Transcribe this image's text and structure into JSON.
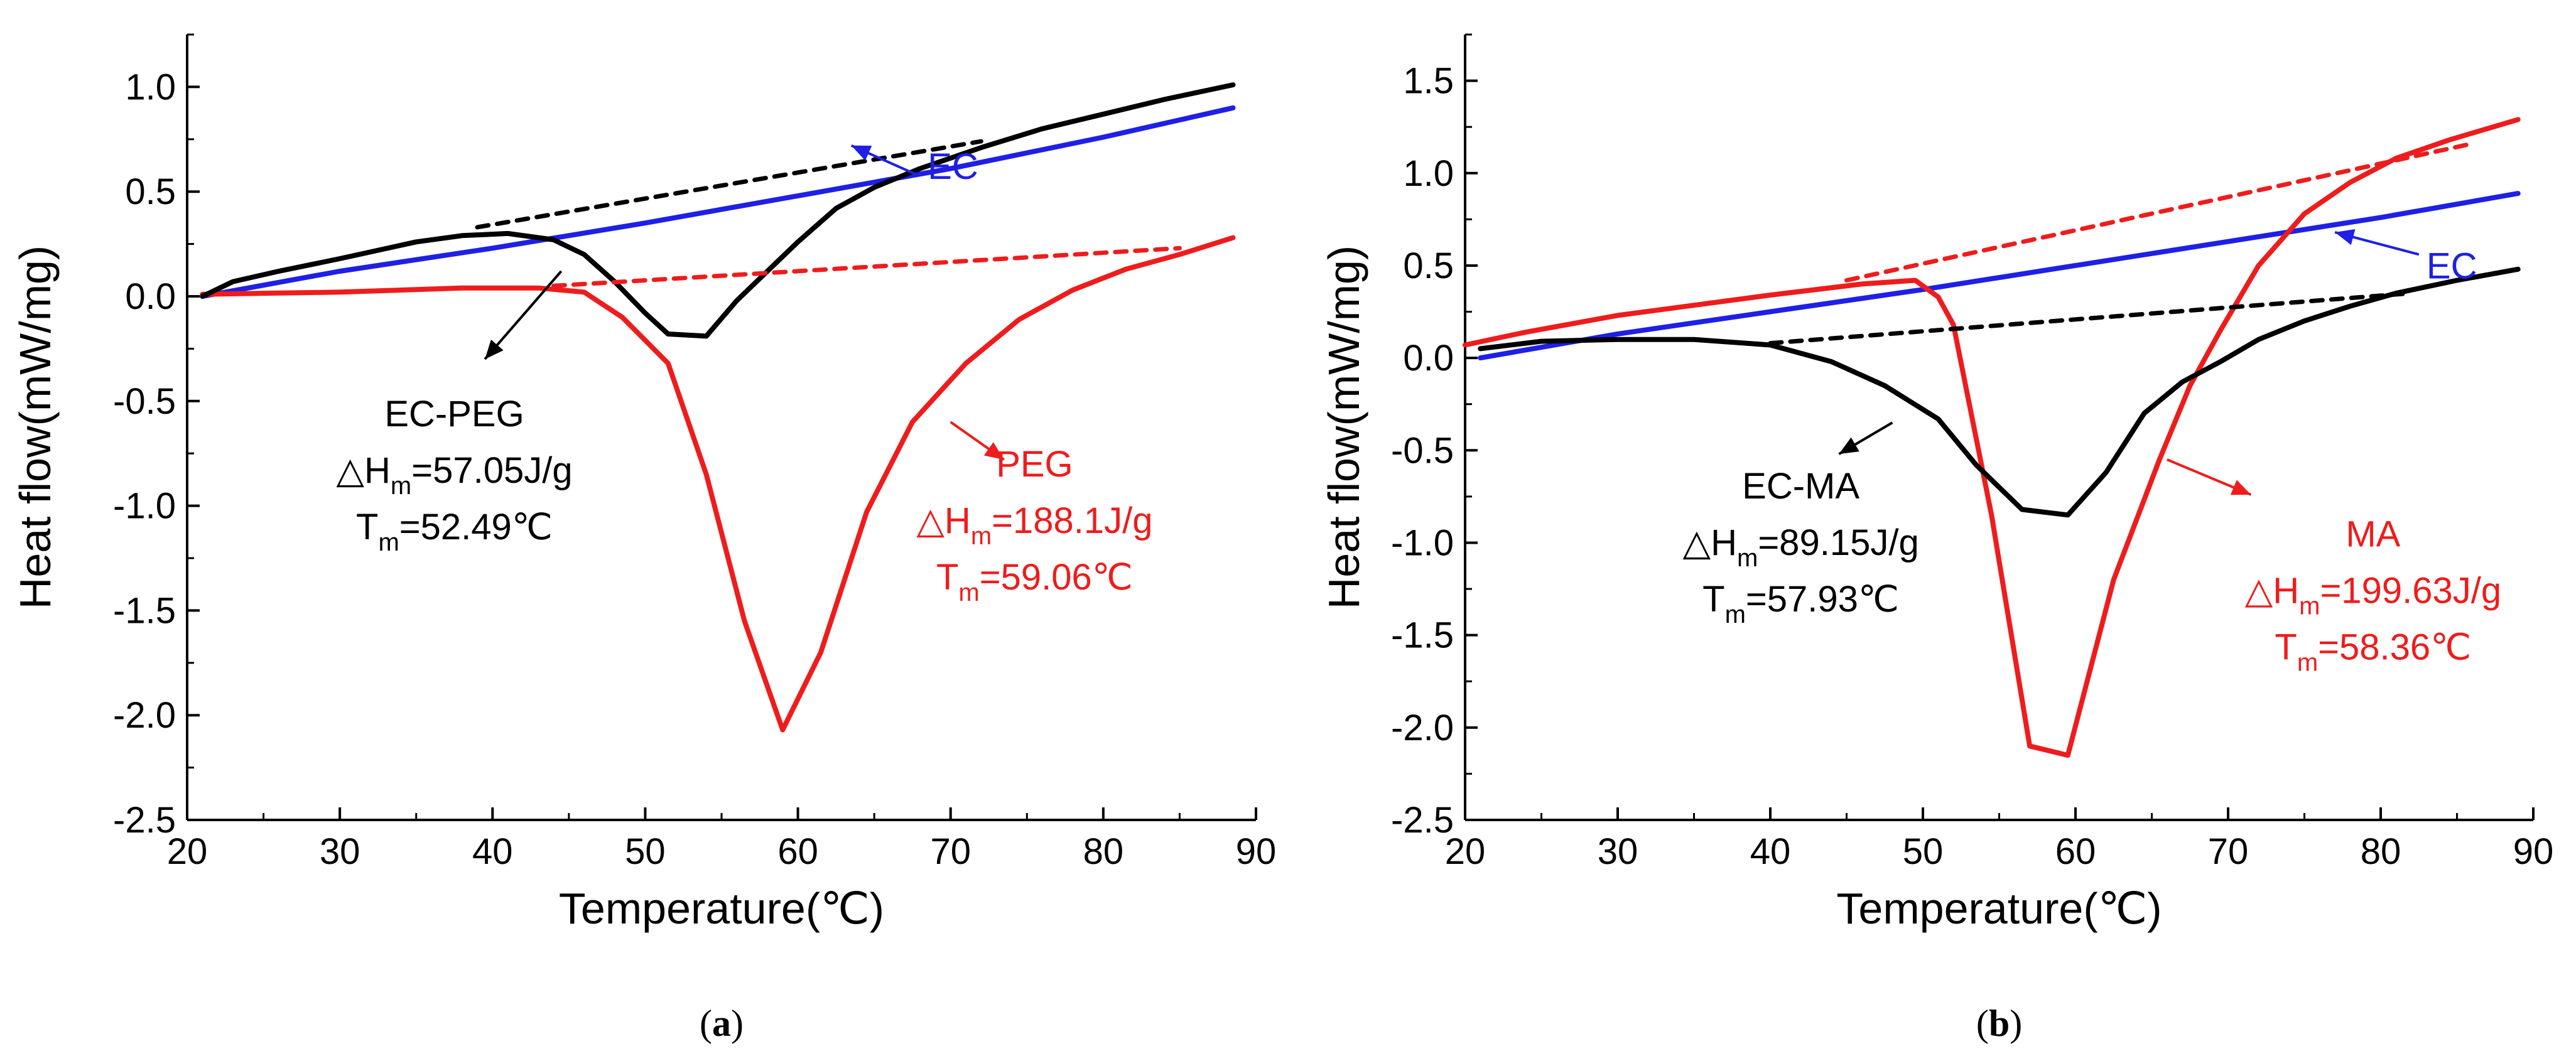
{
  "chart_data": [
    {
      "type": "line",
      "panel": "a",
      "panel_label": {
        "open": "(",
        "letter": "a",
        "close": ")"
      },
      "xlabel": "Temperature(℃)",
      "ylabel": "Heat flow(mW/mg)",
      "xlim": [
        20,
        90
      ],
      "ylim": [
        -2.5,
        1.25
      ],
      "xticks": [
        "20",
        "30",
        "40",
        "50",
        "60",
        "70",
        "80",
        "90"
      ],
      "xtick_values": [
        20,
        30,
        40,
        50,
        60,
        70,
        80,
        90
      ],
      "yticks": [
        "-2.5",
        "-2.0",
        "-1.5",
        "-1.0",
        "-0.5",
        "0.0",
        "0.5",
        "1.0"
      ],
      "ytick_values": [
        -2.5,
        -2.0,
        -1.5,
        -1.0,
        -0.5,
        0.0,
        0.5,
        1.0
      ],
      "colors": {
        "EC": "#1f1fe6",
        "PEG": "#ee1c1c",
        "EC-PEG": "#000000"
      },
      "series": [
        {
          "name": "EC",
          "color": "#1f1fe6",
          "style": "solid",
          "x": [
            21,
            30,
            40,
            50,
            60,
            70,
            80,
            88.5
          ],
          "y": [
            0.0,
            0.12,
            0.23,
            0.35,
            0.48,
            0.61,
            0.76,
            0.9
          ]
        },
        {
          "name": "PEG",
          "color": "#ee1c1c",
          "style": "solid",
          "x": [
            21,
            30,
            38,
            43,
            46,
            48.5,
            51.5,
            54,
            56.5,
            59,
            61.5,
            64.5,
            67.5,
            71,
            74.5,
            78,
            81.5,
            85,
            88.5
          ],
          "y": [
            0.01,
            0.02,
            0.04,
            0.04,
            0.02,
            -0.1,
            -0.32,
            -0.85,
            -1.55,
            -2.07,
            -1.7,
            -1.03,
            -0.6,
            -0.32,
            -0.11,
            0.03,
            0.13,
            0.2,
            0.28
          ]
        },
        {
          "name": "EC-PEG",
          "color": "#000000",
          "style": "solid",
          "x": [
            21,
            23,
            26,
            30,
            35,
            38,
            41,
            44,
            46,
            48,
            50,
            51.5,
            54,
            56,
            58,
            60,
            62.5,
            65,
            68,
            72,
            76,
            80,
            84,
            88.5
          ],
          "y": [
            0.0,
            0.07,
            0.12,
            0.18,
            0.26,
            0.29,
            0.3,
            0.27,
            0.2,
            0.07,
            -0.08,
            -0.18,
            -0.19,
            -0.02,
            0.12,
            0.26,
            0.42,
            0.52,
            0.61,
            0.71,
            0.8,
            0.87,
            0.94,
            1.01
          ]
        },
        {
          "name": "EC-PEG baseline",
          "color": "#000000",
          "style": "dashed",
          "x": [
            39,
            72
          ],
          "y": [
            0.33,
            0.74
          ]
        },
        {
          "name": "PEG baseline",
          "color": "#ee1c1c",
          "style": "dashed",
          "x": [
            44,
            85
          ],
          "y": [
            0.05,
            0.23
          ]
        }
      ],
      "annotations": [
        {
          "label": "EC",
          "color": "#1f1fe6",
          "lines": [
            {
              "main": "EC"
            }
          ],
          "text_x": 68.5,
          "text_y": 0.56,
          "anchor": "start",
          "arrow": {
            "from": [
              67.8,
              0.58
            ],
            "to": [
              63.5,
              0.72
            ]
          }
        },
        {
          "label": "EC-PEG",
          "color": "#000000",
          "lines": [
            {
              "main": "EC-PEG"
            },
            {
              "pre": "△H",
              "sub": "m",
              "post": "=57.05J/g"
            },
            {
              "pre": "T",
              "sub": "m",
              "post": "=52.49℃"
            }
          ],
          "text_x": 37.5,
          "text_y": -0.62,
          "anchor": "middle",
          "arrow": {
            "from": [
              44.5,
              0.12
            ],
            "to": [
              39.5,
              -0.3
            ]
          }
        },
        {
          "label": "PEG",
          "color": "#ee1c1c",
          "lines": [
            {
              "main": "PEG"
            },
            {
              "pre": "△H",
              "sub": "m",
              "post": "=188.1J/g"
            },
            {
              "pre": "T",
              "sub": "m",
              "post": "=59.06℃"
            }
          ],
          "text_x": 75.5,
          "text_y": -0.86,
          "anchor": "middle",
          "arrow": {
            "from": [
              70,
              -0.6
            ],
            "to": [
              73.5,
              -0.78
            ]
          }
        }
      ]
    },
    {
      "type": "line",
      "panel": "b",
      "panel_label": {
        "open": "(",
        "letter": "b",
        "close": ")"
      },
      "xlabel": "Temperature(℃)",
      "ylabel": "Heat flow(mW/mg)",
      "xlim": [
        20,
        90
      ],
      "ylim": [
        -2.5,
        1.75
      ],
      "xticks": [
        "20",
        "30",
        "40",
        "50",
        "60",
        "70",
        "80",
        "90"
      ],
      "xtick_values": [
        20,
        30,
        40,
        50,
        60,
        70,
        80,
        90
      ],
      "yticks": [
        "-2.5",
        "-2.0",
        "-1.5",
        "-1.0",
        "-0.5",
        "0.0",
        "0.5",
        "1.0",
        "1.5"
      ],
      "ytick_values": [
        -2.5,
        -2.0,
        -1.5,
        -1.0,
        -0.5,
        0.0,
        0.5,
        1.0,
        1.5
      ],
      "colors": {
        "EC": "#1f1fe6",
        "MA": "#ee1c1c",
        "EC-MA": "#000000"
      },
      "series": [
        {
          "name": "EC",
          "color": "#1f1fe6",
          "style": "solid",
          "x": [
            21,
            30,
            40,
            50,
            60,
            70,
            80,
            89
          ],
          "y": [
            0.0,
            0.13,
            0.25,
            0.37,
            0.5,
            0.63,
            0.76,
            0.89
          ]
        },
        {
          "name": "MA",
          "color": "#ee1c1c",
          "style": "solid",
          "x": [
            20,
            24,
            30,
            40,
            46,
            49.5,
            51,
            52,
            54.5,
            57,
            59.5,
            62.5,
            65.5,
            67.5,
            69.5,
            72,
            75,
            78,
            81,
            84.5,
            89
          ],
          "y": [
            0.07,
            0.14,
            0.23,
            0.34,
            0.4,
            0.42,
            0.33,
            0.18,
            -0.85,
            -2.1,
            -2.15,
            -1.2,
            -0.55,
            -0.15,
            0.15,
            0.5,
            0.78,
            0.95,
            1.08,
            1.18,
            1.29
          ]
        },
        {
          "name": "EC-MA",
          "color": "#000000",
          "style": "solid",
          "x": [
            21,
            25,
            30,
            35,
            40,
            44,
            47.5,
            51,
            53.5,
            56.5,
            59.5,
            62,
            64.5,
            67,
            69.5,
            72,
            75,
            78,
            81,
            85,
            89
          ],
          "y": [
            0.05,
            0.09,
            0.1,
            0.1,
            0.07,
            -0.02,
            -0.15,
            -0.33,
            -0.58,
            -0.82,
            -0.85,
            -0.62,
            -0.3,
            -0.13,
            -0.02,
            0.1,
            0.2,
            0.28,
            0.35,
            0.42,
            0.48
          ]
        },
        {
          "name": "EC-MA baseline",
          "color": "#000000",
          "style": "dashed",
          "x": [
            40,
            82
          ],
          "y": [
            0.08,
            0.35
          ]
        },
        {
          "name": "MA baseline",
          "color": "#ee1c1c",
          "style": "dashed",
          "x": [
            45,
            86
          ],
          "y": [
            0.42,
            1.16
          ]
        }
      ],
      "annotations": [
        {
          "label": "EC",
          "color": "#1f1fe6",
          "lines": [
            {
              "main": "EC"
            }
          ],
          "text_x": 83,
          "text_y": 0.43,
          "anchor": "start",
          "arrow": {
            "from": [
              82.5,
              0.56
            ],
            "to": [
              77,
              0.68
            ]
          }
        },
        {
          "label": "EC-MA",
          "color": "#000000",
          "lines": [
            {
              "main": "EC-MA"
            },
            {
              "pre": "△H",
              "sub": "m",
              "post": "=89.15J/g"
            },
            {
              "pre": "T",
              "sub": "m",
              "post": "=57.93℃"
            }
          ],
          "text_x": 42,
          "text_y": -0.76,
          "anchor": "middle",
          "arrow": {
            "from": [
              48,
              -0.35
            ],
            "to": [
              44.5,
              -0.52
            ]
          }
        },
        {
          "label": "MA",
          "color": "#ee1c1c",
          "lines": [
            {
              "main": "MA"
            },
            {
              "pre": "△H",
              "sub": "m",
              "post": "=199.63J/g"
            },
            {
              "pre": "T",
              "sub": "m",
              "post": "=58.36℃"
            }
          ],
          "text_x": 79.5,
          "text_y": -1.02,
          "anchor": "middle",
          "arrow": {
            "from": [
              66,
              -0.55
            ],
            "to": [
              71.5,
              -0.74
            ]
          }
        }
      ]
    }
  ]
}
